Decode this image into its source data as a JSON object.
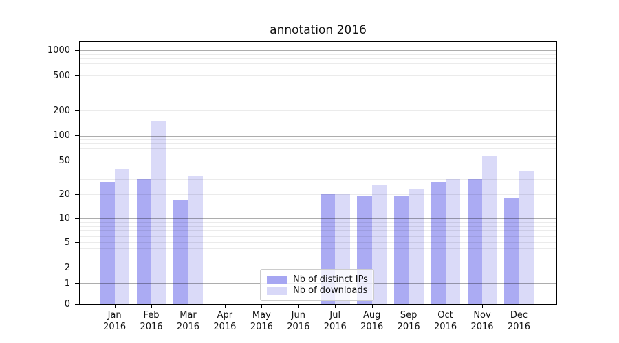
{
  "title": "annotation 2016",
  "chart_data": {
    "type": "bar",
    "title": "annotation 2016",
    "xlabel": "",
    "ylabel": "",
    "yscale": "symlog",
    "ylim": [
      0,
      1300
    ],
    "y_ticks": [
      0,
      1,
      2,
      5,
      10,
      20,
      50,
      100,
      200,
      500,
      1000
    ],
    "grid": "horizontal major (1,10,100,1000) dark + minor log gridlines light",
    "legend_position": "inside axes, lower center",
    "categories": [
      "Jan 2016",
      "Feb 2016",
      "Mar 2016",
      "Apr 2016",
      "May 2016",
      "Jun 2016",
      "Jul 2016",
      "Aug 2016",
      "Sep 2016",
      "Oct 2016",
      "Nov 2016",
      "Dec 2016"
    ],
    "series": [
      {
        "name": "Nb of distinct IPs",
        "color": "#a6a6f2",
        "values": [
          28,
          30,
          17,
          0,
          0,
          0,
          20,
          19,
          19,
          28,
          30,
          18
        ]
      },
      {
        "name": "Nb of downloads",
        "color": "#d8d8f8",
        "values": [
          40,
          150,
          33,
          0,
          0,
          0,
          20,
          26,
          23,
          30,
          57,
          37
        ]
      }
    ]
  },
  "legend": {
    "items": [
      {
        "label": "Nb of distinct IPs",
        "color": "#a6a6f2"
      },
      {
        "label": "Nb of downloads",
        "color": "#d8d8f8"
      }
    ]
  }
}
